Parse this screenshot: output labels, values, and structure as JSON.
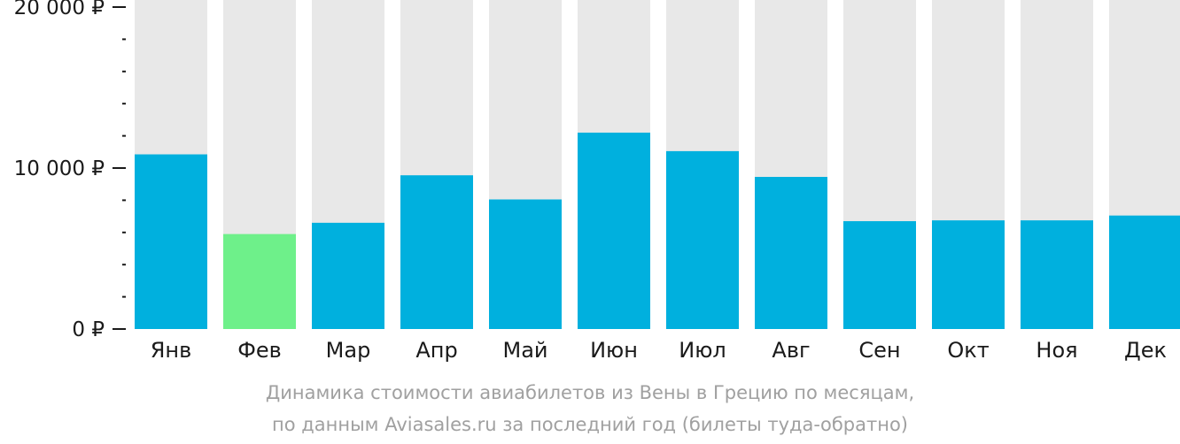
{
  "chart_data": {
    "type": "bar",
    "categories": [
      "Янв",
      "Фев",
      "Мар",
      "Апр",
      "Май",
      "Июн",
      "Июл",
      "Авг",
      "Сен",
      "Окт",
      "Ноя",
      "Дек"
    ],
    "values": [
      10850,
      5900,
      6600,
      9550,
      8050,
      12200,
      11050,
      9450,
      6700,
      6750,
      6750,
      7050
    ],
    "ylim": [
      0,
      20000
    ],
    "yticks": [
      {
        "value": 0,
        "label": "0 ₽"
      },
      {
        "value": 10000,
        "label": "10 000 ₽"
      },
      {
        "value": 20000,
        "label": "20 000 ₽"
      }
    ],
    "minor_tick_step": 2000,
    "highlight_index": 1,
    "colors": {
      "bar": "#00b0de",
      "highlight": "#6ef08a",
      "background_bar": "#e8e8e8",
      "axis": "#1a1a1a"
    },
    "grid": false,
    "legend": "none"
  },
  "caption": {
    "line1": "Динамика стоимости авиабилетов из Вены в Грецию по месяцам,",
    "line2": "по данным Aviasales.ru за последний год (билеты туда-обратно)"
  }
}
